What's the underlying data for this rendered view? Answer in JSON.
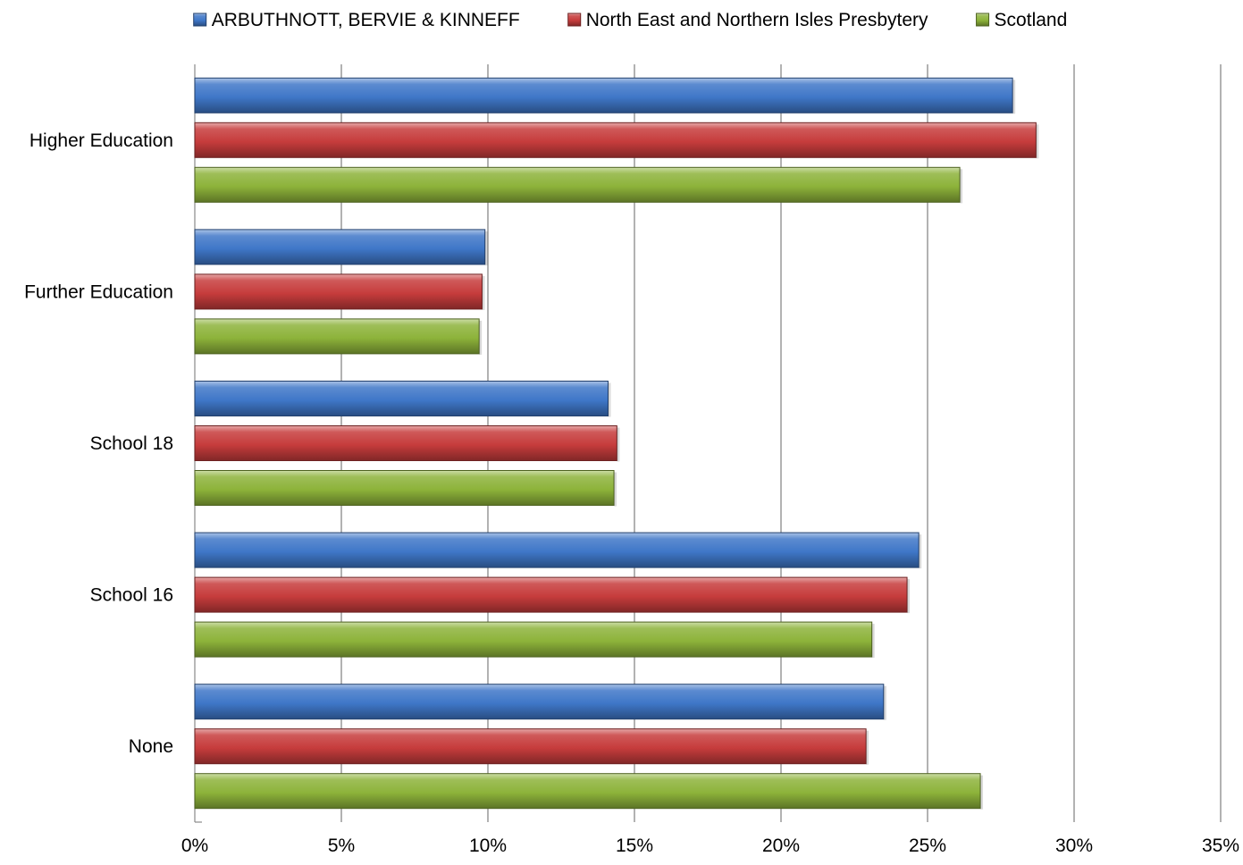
{
  "chart_data": {
    "type": "bar",
    "orientation": "horizontal",
    "categories": [
      "Higher Education",
      "Further Education",
      "School 18",
      "School 16",
      "None"
    ],
    "series": [
      {
        "name": "ARBUTHNOTT, BERVIE & KINNEFF",
        "color": "#3F77C8",
        "values": [
          27.9,
          9.9,
          14.1,
          24.7,
          23.5
        ]
      },
      {
        "name": "North East and Northern Isles Presbytery",
        "color": "#C63C3C",
        "values": [
          28.7,
          9.8,
          14.4,
          24.3,
          22.9
        ]
      },
      {
        "name": "Scotland",
        "color": "#8DB33A",
        "values": [
          26.1,
          9.7,
          14.3,
          23.1,
          26.8
        ]
      }
    ],
    "x_ticks": [
      "0%",
      "5%",
      "10%",
      "15%",
      "20%",
      "25%",
      "30%",
      "35%"
    ],
    "xlim": [
      0,
      35
    ],
    "grid": true,
    "legend_position": "top"
  }
}
